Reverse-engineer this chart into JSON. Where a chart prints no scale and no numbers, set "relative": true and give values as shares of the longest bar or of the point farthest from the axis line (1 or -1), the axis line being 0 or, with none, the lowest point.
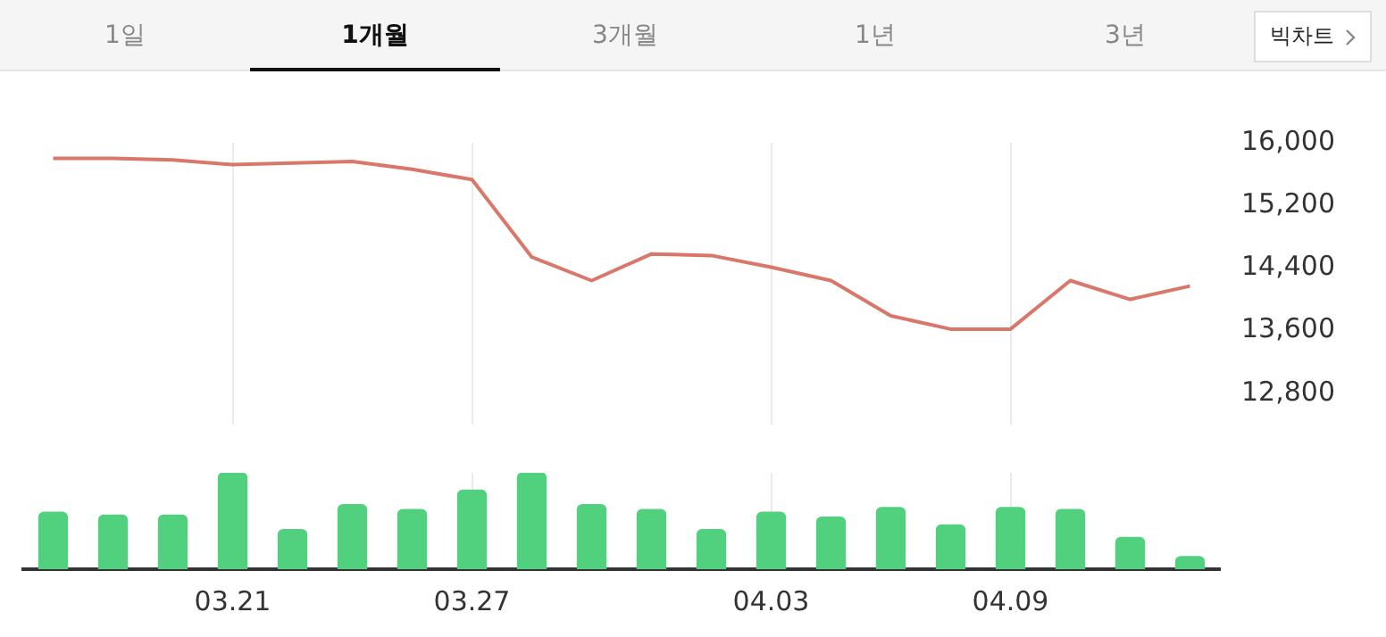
{
  "chart_data": [
    {
      "type": "line",
      "color": "#d9786a",
      "categories": [
        null,
        null,
        null,
        "03.21",
        null,
        null,
        null,
        "03.27",
        null,
        null,
        null,
        null,
        "04.03",
        null,
        null,
        null,
        "04.09",
        null,
        null,
        null
      ],
      "values": [
        15800,
        15800,
        15780,
        15720,
        15740,
        15760,
        15660,
        15530,
        14540,
        14240,
        14580,
        14560,
        14410,
        14240,
        13790,
        13620,
        13620,
        14240,
        14000,
        14170
      ],
      "ylim": [
        12400,
        16000
      ],
      "yticks": [
        {
          "value": 12800,
          "label": "12,800"
        },
        {
          "value": 13600,
          "label": "13,600"
        },
        {
          "value": 14400,
          "label": "14,400"
        },
        {
          "value": 15200,
          "label": "15,200"
        },
        {
          "value": 16000,
          "label": "16,000"
        }
      ],
      "tick_labels": "y",
      "grid": "x",
      "marker": "none",
      "legend": false,
      "annotations": [
        "1일",
        "1개월",
        "3개월",
        "1년",
        "3년",
        "빅차트"
      ]
    },
    {
      "type": "bar",
      "relative": true,
      "color": "#51d17e",
      "categories": [
        null,
        null,
        null,
        "03.21",
        null,
        null,
        null,
        "03.27",
        null,
        null,
        null,
        null,
        "04.03",
        null,
        null,
        null,
        "04.09",
        null,
        null,
        null
      ],
      "values": [
        0.59,
        0.56,
        0.56,
        1,
        0.41,
        0.67,
        0.62,
        0.82,
        1,
        0.67,
        0.62,
        0.41,
        0.59,
        0.54,
        0.64,
        0.46,
        0.64,
        0.62,
        0.33,
        0.13
      ],
      "tick_labels": "x",
      "grid": "x",
      "legend": false
    }
  ]
}
